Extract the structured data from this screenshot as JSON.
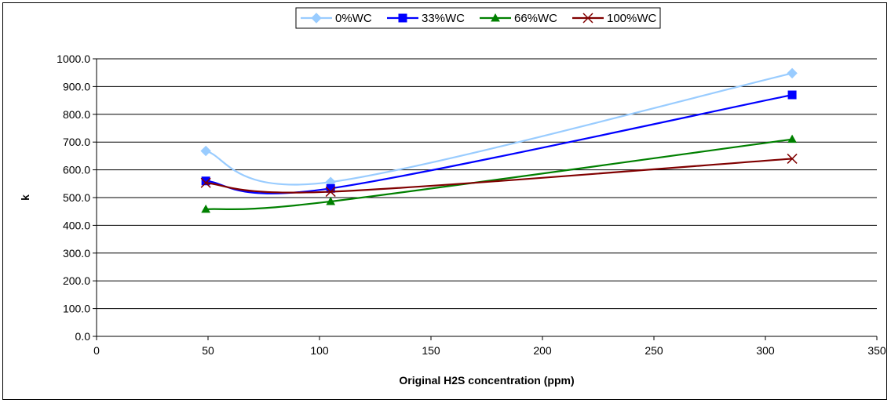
{
  "chart_data": {
    "type": "line",
    "title": "",
    "xlabel": "Original H2S concentration (ppm)",
    "ylabel": "k",
    "xlim": [
      0,
      350
    ],
    "ylim": [
      0,
      1000
    ],
    "x_ticks": [
      "0",
      "50",
      "100",
      "150",
      "200",
      "250",
      "300",
      "350"
    ],
    "y_ticks": [
      "0.0",
      "100.0",
      "200.0",
      "300.0",
      "400.0",
      "500.0",
      "600.0",
      "700.0",
      "800.0",
      "900.0",
      "1000.0"
    ],
    "grid": "horizontal",
    "legend_position": "top",
    "smooth": true,
    "series": [
      {
        "name": "0%WC",
        "color": "#99ccff",
        "marker": "diamond",
        "x": [
          49,
          105,
          312
        ],
        "y": [
          668,
          556,
          948
        ]
      },
      {
        "name": "33%WC",
        "color": "#0000ff",
        "marker": "square",
        "x": [
          49,
          105,
          312
        ],
        "y": [
          560,
          533,
          870
        ]
      },
      {
        "name": "66%WC",
        "color": "#008000",
        "marker": "triangle",
        "x": [
          49,
          105,
          312
        ],
        "y": [
          458,
          486,
          710
        ]
      },
      {
        "name": "100%WC",
        "color": "#800000",
        "marker": "x",
        "x": [
          49,
          105,
          312
        ],
        "y": [
          553,
          521,
          640
        ]
      }
    ]
  }
}
